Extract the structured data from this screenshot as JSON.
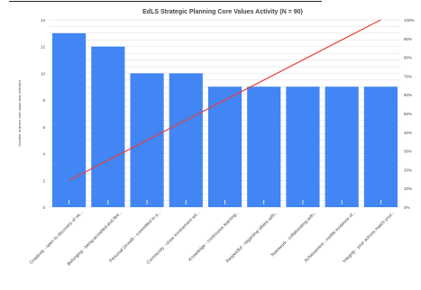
{
  "chart_data": {
    "type": "bar",
    "title": "EdLS Strategic Planning Core Values Activity (N = 90)",
    "ylabel": "Number of times core value was selected",
    "xlabel": "",
    "ylim": [
      0,
      14
    ],
    "y_ticks": [
      0,
      2,
      4,
      6,
      8,
      10,
      12,
      14
    ],
    "y2lim": [
      0,
      100
    ],
    "y2_ticks": [
      "0%",
      "10%",
      "20%",
      "30%",
      "40%",
      "50%",
      "60%",
      "70%",
      "80%",
      "90%",
      "100%"
    ],
    "grid": true,
    "categories": [
      "Creativity - open to discovery of ne...",
      "Belonging - being accepted and like...",
      "Personal Growth - committed to a...",
      "Community - close involvement wit...",
      "Knowledge - continuous learning...",
      "Respectful - regarding others with...",
      "Teamwork - collaborating with...",
      "Achievement - visible evidence of...",
      "Integrity - your actions match your..."
    ],
    "series": [
      {
        "type": "bar",
        "values": [
          13,
          12,
          10,
          10,
          9,
          9,
          9,
          9,
          9
        ]
      },
      {
        "type": "line",
        "axis": "secondary",
        "values": [
          14.3,
          25.7,
          34.8,
          43.8,
          52.4,
          61.0,
          70.5,
          80.0,
          100
        ]
      }
    ],
    "colors": {
      "bar": "#4285f4",
      "line": "#e8413a",
      "grid": "#dcdcdc",
      "text": "#444444"
    }
  }
}
